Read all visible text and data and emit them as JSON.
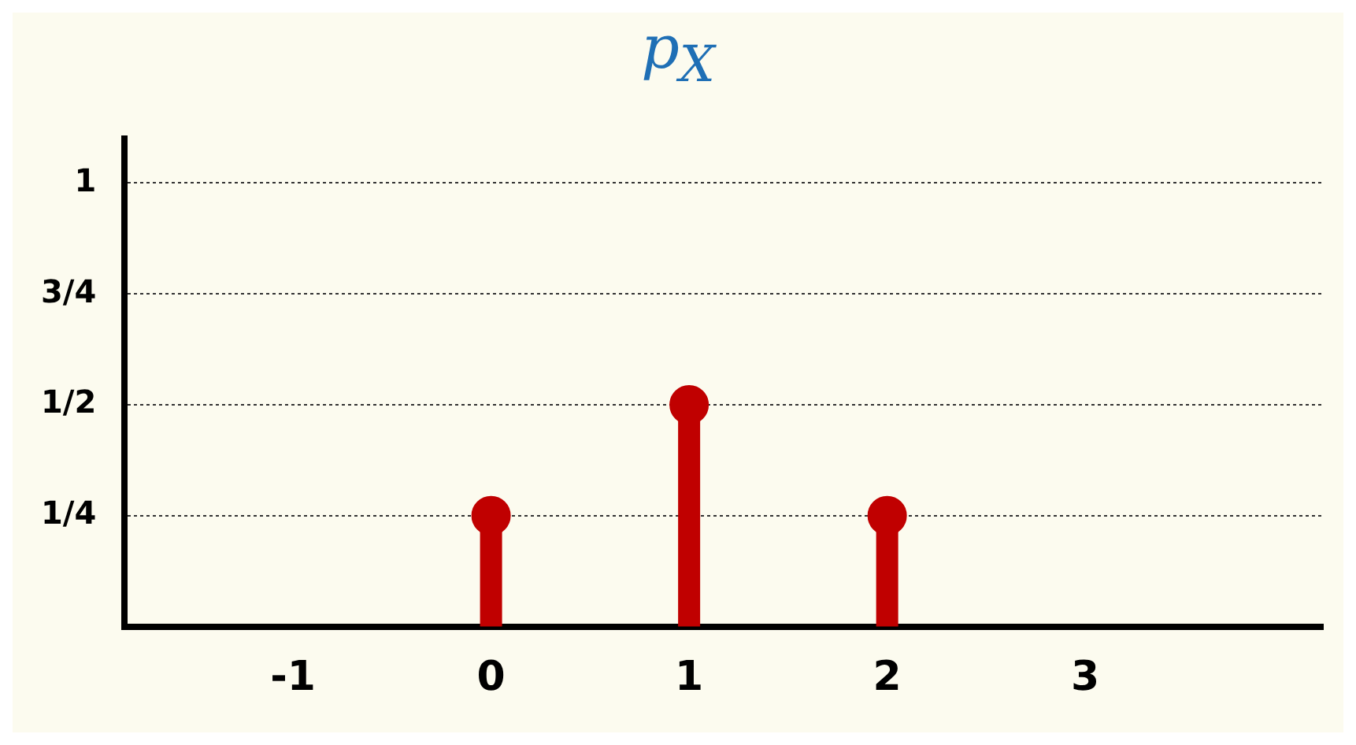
{
  "chart_data": {
    "type": "lollipop",
    "title": "p$_{X}$",
    "x": [
      0,
      1,
      2
    ],
    "series": [
      {
        "color": "#c00000",
        "values": [
          0.25,
          0.5,
          0.25
        ]
      }
    ],
    "marker": "circle",
    "xlim": [
      -1.85,
      4.2
    ],
    "xticks": [
      -1,
      0,
      1,
      2,
      3
    ],
    "ylim": [
      0,
      1.1
    ],
    "yticks": [
      {
        "value": 0.25,
        "label": "1/4"
      },
      {
        "value": 0.5,
        "label": "1/2"
      },
      {
        "value": 0.75,
        "label": "3/4"
      },
      {
        "value": 1,
        "label": "1"
      }
    ],
    "grid": "y",
    "legend": false
  }
}
